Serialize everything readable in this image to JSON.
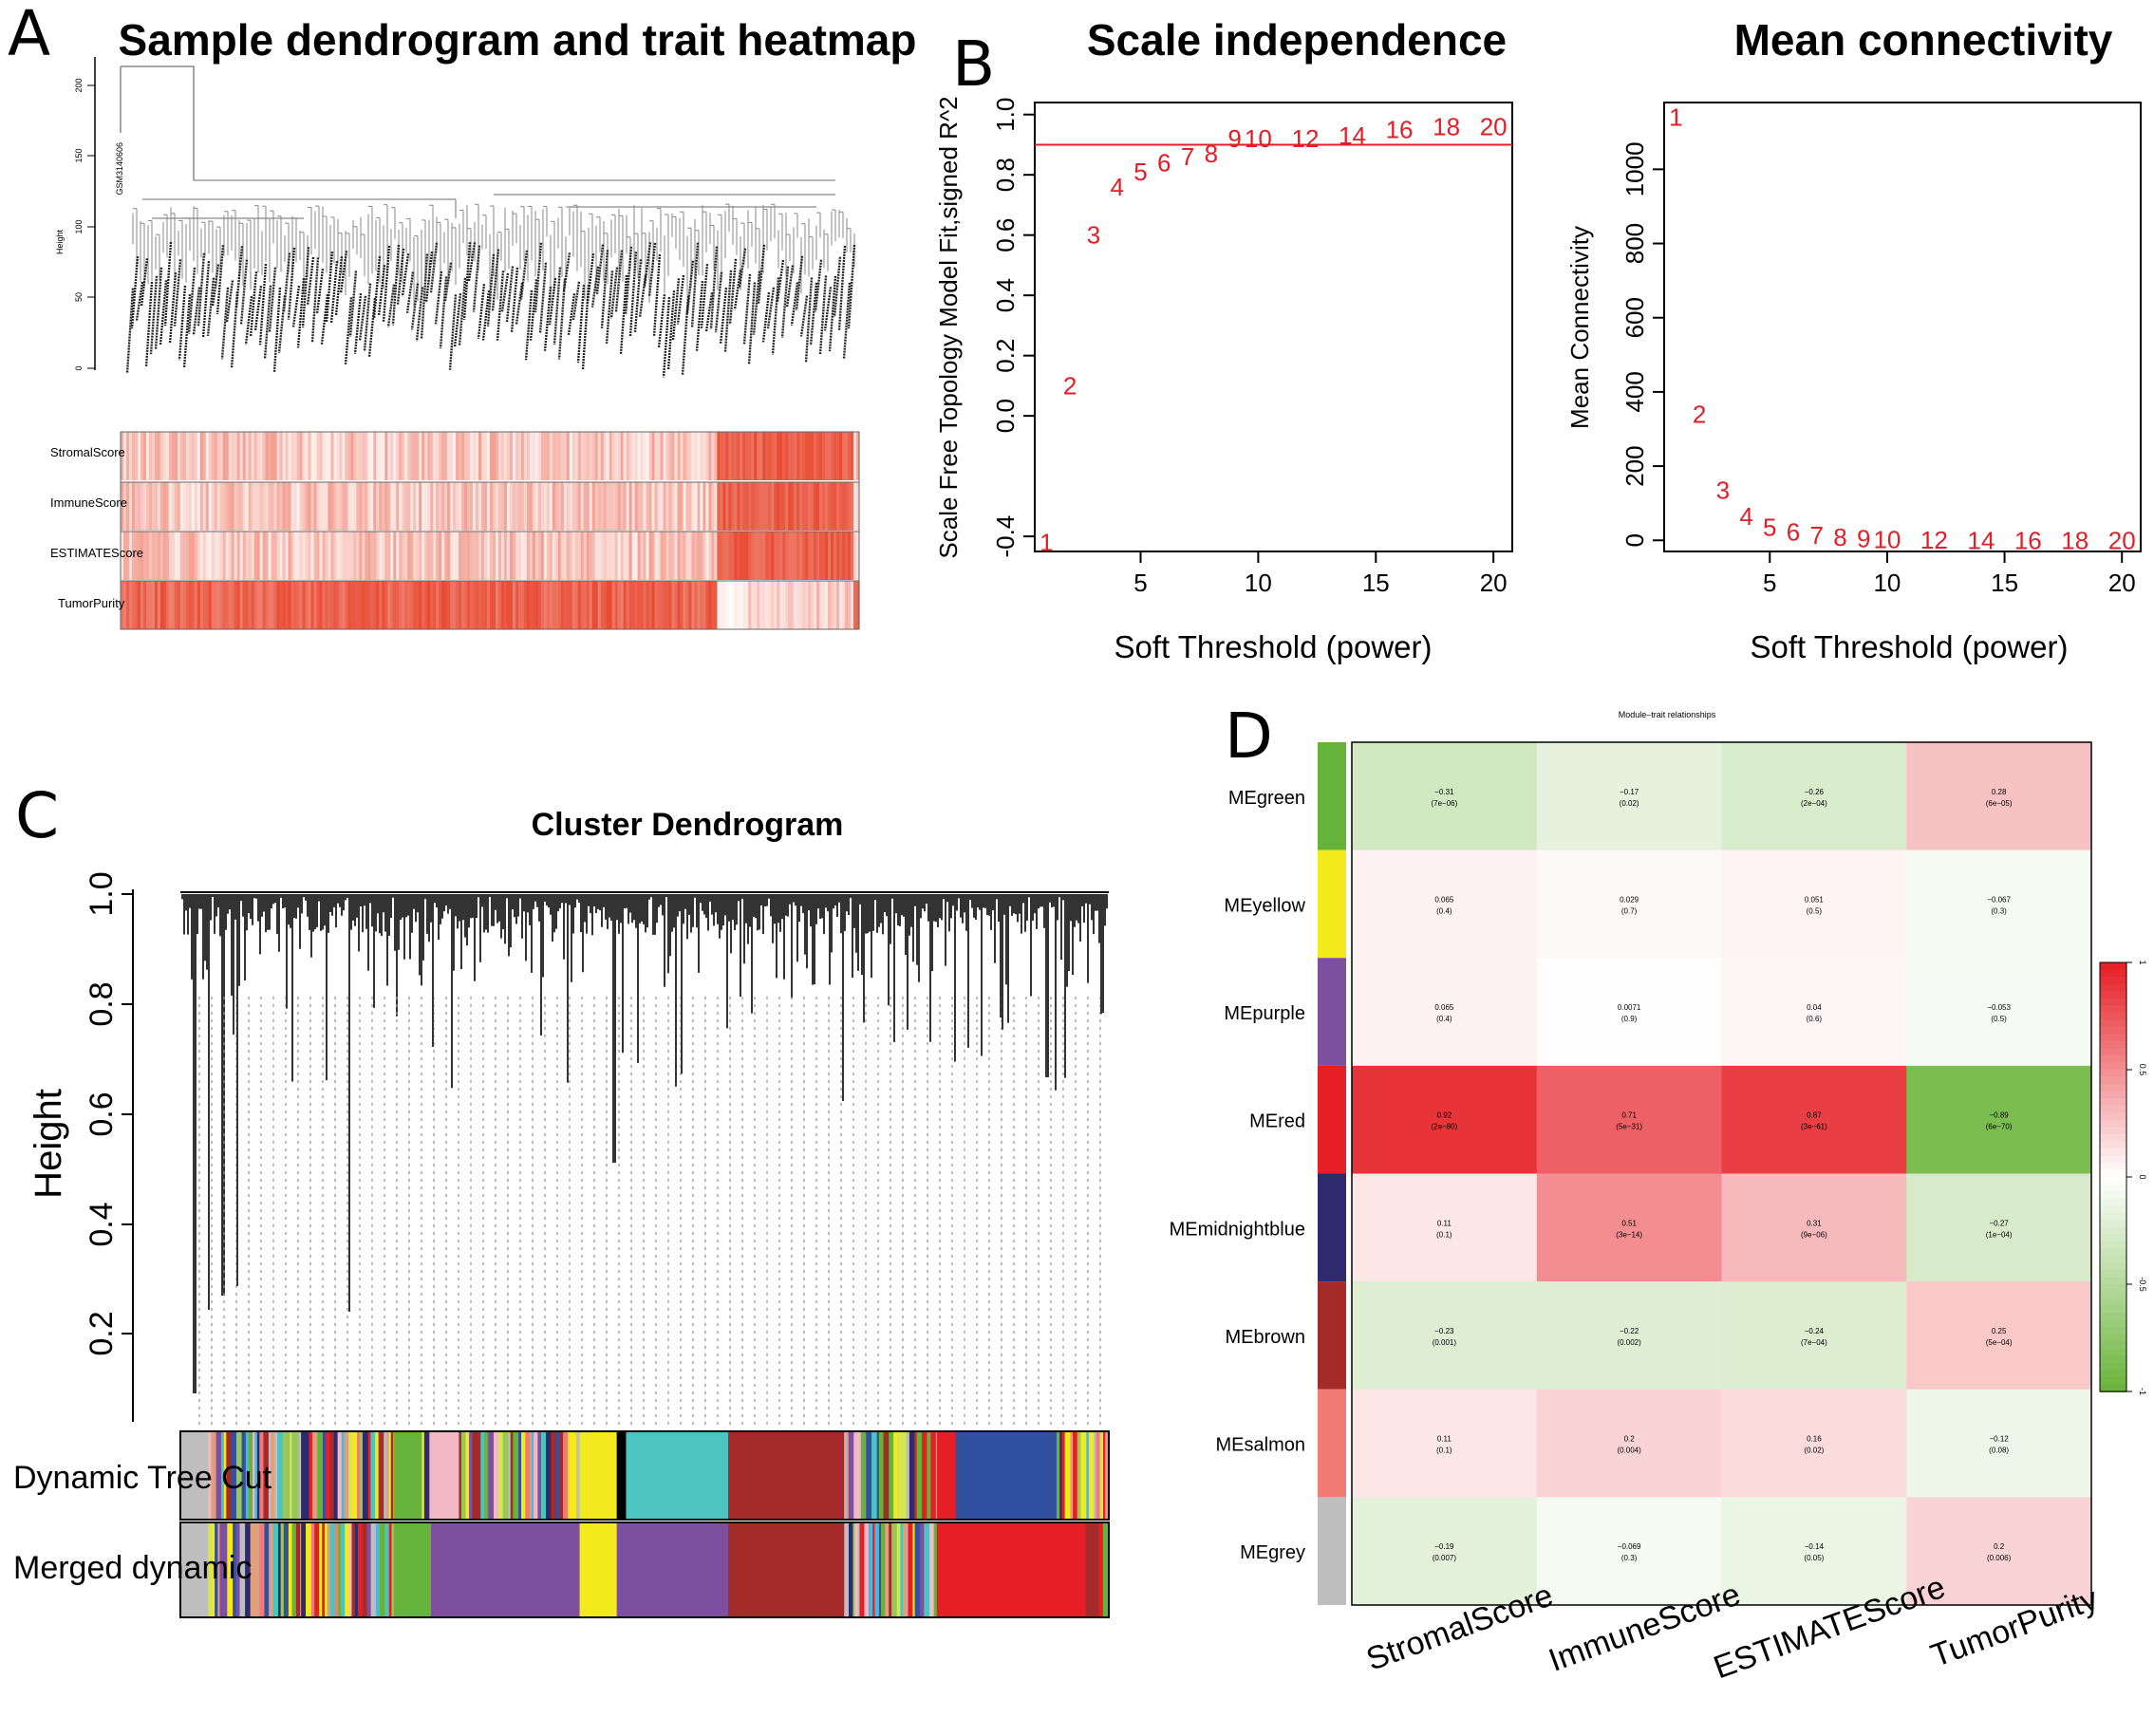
{
  "panels": {
    "a": {
      "label": "A",
      "title": "Sample dendrogram and trait heatmap",
      "ylabel": "Height",
      "yticks": [
        "0",
        "50",
        "100",
        "150",
        "200"
      ],
      "outlier_sample": "GSM3140606",
      "traits": [
        "StromalScore",
        "ImmuneScore",
        "ESTIMATEScore",
        "TumorPurity"
      ]
    },
    "b": {
      "label": "B"
    },
    "c": {
      "label": "C",
      "title": "Cluster Dendrogram",
      "ylabel": "Height",
      "yticks": [
        "0.2",
        "0.4",
        "0.6",
        "0.8",
        "1.0"
      ],
      "rows": [
        "Dynamic Tree Cut",
        "Merged dynamic"
      ]
    },
    "d": {
      "label": "D",
      "title": "Module–trait relationships",
      "legend_ticks": [
        "1",
        "0.5",
        "0",
        "-0.5",
        "-1"
      ]
    }
  },
  "chart_data": [
    {
      "type": "scatter",
      "title": "Scale independence",
      "xlabel": "Soft Threshold (power)",
      "ylabel": "Scale Free Topology Model Fit,signed R^2",
      "x": [
        1,
        2,
        3,
        4,
        5,
        6,
        7,
        8,
        9,
        10,
        12,
        14,
        16,
        18,
        20
      ],
      "y": [
        -0.42,
        0.1,
        0.6,
        0.76,
        0.81,
        0.84,
        0.86,
        0.87,
        0.92,
        0.92,
        0.92,
        0.93,
        0.95,
        0.96,
        0.96
      ],
      "point_labels": [
        "1",
        "2",
        "3",
        "4",
        "5",
        "6",
        "7",
        "8",
        "9",
        "10",
        "12",
        "14",
        "16",
        "18",
        "20"
      ],
      "xlim": [
        0.5,
        20.8
      ],
      "ylim": [
        -0.45,
        1.04
      ],
      "xticks": [
        "5",
        "10",
        "15",
        "20"
      ],
      "yticks": [
        -0.4,
        0.0,
        0.2,
        0.4,
        0.6,
        0.8,
        1.0
      ],
      "ytick_labels": [
        "-0.4",
        "0.0",
        "0.2",
        "0.4",
        "0.6",
        "0.8",
        "1.0"
      ],
      "hline": 0.9
    },
    {
      "type": "scatter",
      "title": "Mean connectivity",
      "xlabel": "Soft Threshold (power)",
      "ylabel": "Mean Connectivity",
      "x": [
        1,
        2,
        3,
        4,
        5,
        6,
        7,
        8,
        9,
        10,
        12,
        14,
        16,
        18,
        20
      ],
      "y": [
        1140,
        340,
        135,
        65,
        35,
        22,
        14,
        8,
        4,
        2,
        1,
        0,
        0,
        0,
        0
      ],
      "point_labels": [
        "1",
        "2",
        "3",
        "4",
        "5",
        "6",
        "7",
        "8",
        "9",
        "10",
        "12",
        "14",
        "16",
        "18",
        "20"
      ],
      "xlim": [
        0.5,
        20.8
      ],
      "ylim": [
        -30,
        1180
      ],
      "xticks": [
        "5",
        "10",
        "15",
        "20"
      ],
      "yticks": [
        0,
        200,
        400,
        600,
        800,
        1000
      ],
      "ytick_labels": [
        "0",
        "200",
        "400",
        "600",
        "800",
        "1000"
      ]
    },
    {
      "type": "heatmap",
      "title": "Module–trait relationships",
      "rows": [
        "MEgreen",
        "MEyellow",
        "MEpurple",
        "MEred",
        "MEmidnightblue",
        "MEbrown",
        "MEsalmon",
        "MEgrey"
      ],
      "row_colors": [
        "#66b33b",
        "#f2ea1d",
        "#7d4f9f",
        "#e51f25",
        "#2d2b6e",
        "#a52a2a",
        "#f27c75",
        "#bebebe"
      ],
      "columns": [
        "StromalScore",
        "ImmuneScore",
        "ESTIMATEScore",
        "TumorPurity"
      ],
      "values": [
        [
          -0.31,
          -0.17,
          -0.26,
          0.28
        ],
        [
          0.065,
          0.029,
          0.051,
          -0.067
        ],
        [
          0.065,
          0.0071,
          0.04,
          -0.053
        ],
        [
          0.92,
          0.71,
          0.87,
          -0.89
        ],
        [
          0.11,
          0.51,
          0.31,
          -0.27
        ],
        [
          -0.23,
          -0.22,
          -0.24,
          0.25
        ],
        [
          0.11,
          0.2,
          0.16,
          -0.12
        ],
        [
          -0.19,
          -0.069,
          -0.14,
          0.2
        ]
      ],
      "value_labels": [
        [
          "−0.31",
          "−0.17",
          "−0.26",
          "0.28"
        ],
        [
          "0.065",
          "0.029",
          "0.051",
          "−0.067"
        ],
        [
          "0.065",
          "0.0071",
          "0.04",
          "−0.053"
        ],
        [
          "0.92",
          "0.71",
          "0.87",
          "−0.89"
        ],
        [
          "0.11",
          "0.51",
          "0.31",
          "−0.27"
        ],
        [
          "−0.23",
          "−0.22",
          "−0.24",
          "0.25"
        ],
        [
          "0.11",
          "0.2",
          "0.16",
          "−0.12"
        ],
        [
          "−0.19",
          "−0.069",
          "−0.14",
          "0.2"
        ]
      ],
      "pvalues": [
        [
          "(7e−06)",
          "(0.02)",
          "(2e−04)",
          "(6e−05)"
        ],
        [
          "(0.4)",
          "(0.7)",
          "(0.5)",
          "(0.3)"
        ],
        [
          "(0.4)",
          "(0.9)",
          "(0.6)",
          "(0.5)"
        ],
        [
          "(2e−80)",
          "(5e−31)",
          "(3e−61)",
          "(6e−70)"
        ],
        [
          "(0.1)",
          "(3e−14)",
          "(9e−06)",
          "(1e−04)"
        ],
        [
          "(0.001)",
          "(0.002)",
          "(7e−04)",
          "(5e−04)"
        ],
        [
          "(0.1)",
          "(0.004)",
          "(0.02)",
          "(0.08)"
        ],
        [
          "(0.007)",
          "(0.3)",
          "(0.05)",
          "(0.006)"
        ]
      ],
      "zlim": [
        -1,
        1
      ]
    }
  ]
}
